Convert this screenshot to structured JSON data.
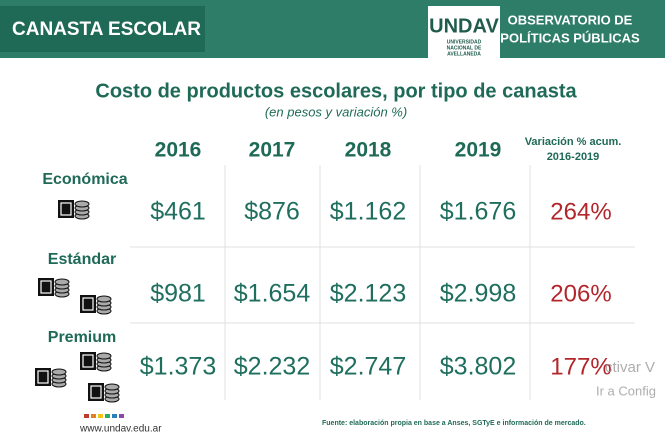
{
  "header": {
    "title": "CANASTA ESCOLAR",
    "logo": "UNDAV",
    "logo_sub": [
      "UNIVERSIDAD",
      "NACIONAL DE",
      "AVELLANEDA"
    ],
    "observatory": [
      "OBSERVATORIO DE",
      "POLÍTICAS PÚBLICAS"
    ]
  },
  "table": {
    "title": "Costo de productos escolares, por tipo de canasta",
    "subtitle": "(en pesos y variación %)",
    "columns": [
      "2016",
      "2017",
      "2018",
      "2019"
    ],
    "variation_header": [
      "Variación % acum.",
      "2016-2019"
    ],
    "rows": [
      {
        "label": "Económica",
        "values": [
          "$461",
          "$876",
          "$1.162",
          "$1.676"
        ],
        "variation": "264%"
      },
      {
        "label": "Estándar",
        "values": [
          "$981",
          "$1.654",
          "$2.123",
          "$2.998"
        ],
        "variation": "206%"
      },
      {
        "label": "Premium",
        "values": [
          "$1.373",
          "$2.232",
          "$2.747",
          "$3.802"
        ],
        "variation": "177%"
      }
    ]
  },
  "footer": {
    "url": "www.undav.edu.ar",
    "source": "Fuente: elaboración propia en base a Anses, SGTyE e información de mercado."
  },
  "watermark": [
    "ctivar V",
    "Ir a Config"
  ]
}
